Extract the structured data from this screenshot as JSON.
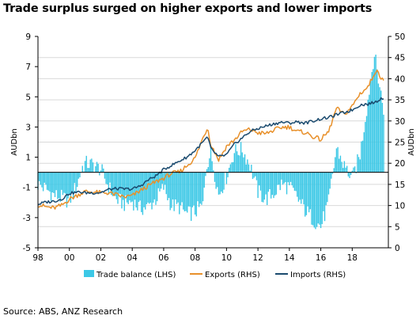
{
  "title": "Trade surplus surged on higher exports and lower imports",
  "source": "Source: ABS, ANZ Research",
  "colors": {
    "trade_balance": "#3cc8e6",
    "exports": "#e8902a",
    "imports": "#1a4a6e",
    "axis": "#000000",
    "grid": "#d9d9d9"
  },
  "chart_data": {
    "type": "bar+line",
    "title": "Trade surplus surged on higher exports and lower imports",
    "x_axis": {
      "type": "year",
      "range": [
        1998,
        2020.3
      ],
      "tick_labels": [
        "98",
        "00",
        "02",
        "04",
        "06",
        "08",
        "10",
        "12",
        "14",
        "16",
        "18"
      ],
      "tick_values": [
        1998,
        2000,
        2002,
        2004,
        2006,
        2008,
        2010,
        2012,
        2014,
        2016,
        2018
      ]
    },
    "y_left": {
      "label": "AUDbn",
      "range": [
        -5,
        9
      ],
      "ticks": [
        -5,
        -3,
        -1,
        1,
        3,
        5,
        7,
        9
      ],
      "tick_labels": [
        "-5",
        "-3",
        "-1",
        "1",
        "3",
        "5",
        "7",
        "9"
      ]
    },
    "y_right": {
      "label": "AUDbn",
      "range": [
        0,
        50
      ],
      "ticks": [
        0,
        5,
        10,
        15,
        20,
        25,
        30,
        35,
        40,
        45,
        50
      ],
      "tick_labels": [
        "0",
        "5",
        "10",
        "15",
        "20",
        "25",
        "30",
        "35",
        "40",
        "45",
        "50"
      ]
    },
    "grid": "horizontal",
    "legend": {
      "placement": "bottom",
      "entries": [
        "Trade balance (LHS)",
        "Exports (RHS)",
        "Imports (RHS)"
      ]
    },
    "series": [
      {
        "name": "Trade balance (LHS)",
        "type": "bar",
        "axis": "left",
        "frequency": "monthly",
        "anchors": [
          [
            1998.0,
            -0.8
          ],
          [
            1998.5,
            -1.1
          ],
          [
            1999.0,
            -1.5
          ],
          [
            1999.5,
            -1.7
          ],
          [
            2000.0,
            -1.9
          ],
          [
            2000.5,
            -0.8
          ],
          [
            2000.8,
            0.3
          ],
          [
            2001.0,
            0.6
          ],
          [
            2001.5,
            0.5
          ],
          [
            2002.0,
            0.2
          ],
          [
            2002.5,
            -1.0
          ],
          [
            2003.0,
            -1.8
          ],
          [
            2003.5,
            -2.1
          ],
          [
            2004.0,
            -1.9
          ],
          [
            2004.5,
            -2.4
          ],
          [
            2005.0,
            -2.3
          ],
          [
            2005.5,
            -1.8
          ],
          [
            2006.0,
            -1.0
          ],
          [
            2006.5,
            -2.2
          ],
          [
            2007.0,
            -2.3
          ],
          [
            2007.5,
            -2.8
          ],
          [
            2008.0,
            -2.6
          ],
          [
            2008.5,
            -2.2
          ],
          [
            2008.7,
            0.4
          ],
          [
            2009.0,
            1.3
          ],
          [
            2009.5,
            -1.5
          ],
          [
            2010.0,
            -0.3
          ],
          [
            2010.5,
            1.4
          ],
          [
            2011.0,
            1.5
          ],
          [
            2011.5,
            0.5
          ],
          [
            2012.0,
            -1.3
          ],
          [
            2012.5,
            -1.8
          ],
          [
            2013.0,
            -1.4
          ],
          [
            2013.5,
            -0.8
          ],
          [
            2014.0,
            -1.0
          ],
          [
            2014.5,
            -1.7
          ],
          [
            2015.0,
            -2.5
          ],
          [
            2015.5,
            -3.1
          ],
          [
            2016.0,
            -3.6
          ],
          [
            2016.5,
            -2.0
          ],
          [
            2017.0,
            1.6
          ],
          [
            2017.5,
            0.4
          ],
          [
            2018.0,
            -0.4
          ],
          [
            2018.5,
            1.2
          ],
          [
            2019.0,
            4.8
          ],
          [
            2019.4,
            7.9
          ],
          [
            2019.7,
            6.0
          ],
          [
            2020.0,
            4.2
          ]
        ]
      },
      {
        "name": "Exports (RHS)",
        "type": "line",
        "axis": "right",
        "frequency": "monthly",
        "anchors": [
          [
            1998.0,
            10.2
          ],
          [
            1998.5,
            9.7
          ],
          [
            1999.0,
            9.4
          ],
          [
            1999.5,
            10.0
          ],
          [
            2000.0,
            11.5
          ],
          [
            2000.7,
            12.8
          ],
          [
            2001.0,
            13.3
          ],
          [
            2001.5,
            13.2
          ],
          [
            2002.0,
            13.0
          ],
          [
            2002.5,
            13.0
          ],
          [
            2003.0,
            12.5
          ],
          [
            2003.5,
            12.0
          ],
          [
            2004.0,
            12.3
          ],
          [
            2004.5,
            13.5
          ],
          [
            2005.0,
            14.6
          ],
          [
            2005.5,
            15.6
          ],
          [
            2006.0,
            16.5
          ],
          [
            2006.5,
            17.6
          ],
          [
            2007.0,
            17.9
          ],
          [
            2007.5,
            19.5
          ],
          [
            2008.0,
            21.2
          ],
          [
            2008.5,
            26.0
          ],
          [
            2008.8,
            28.5
          ],
          [
            2009.0,
            24.5
          ],
          [
            2009.5,
            20.8
          ],
          [
            2010.0,
            24.0
          ],
          [
            2010.5,
            25.5
          ],
          [
            2011.0,
            27.5
          ],
          [
            2011.5,
            28.0
          ],
          [
            2012.0,
            27.2
          ],
          [
            2012.5,
            27.0
          ],
          [
            2013.0,
            27.8
          ],
          [
            2013.5,
            28.5
          ],
          [
            2014.0,
            28.6
          ],
          [
            2014.5,
            27.5
          ],
          [
            2015.0,
            27.3
          ],
          [
            2015.5,
            26.3
          ],
          [
            2016.0,
            25.6
          ],
          [
            2016.5,
            27.5
          ],
          [
            2017.0,
            33.0
          ],
          [
            2017.5,
            31.5
          ],
          [
            2018.0,
            33.5
          ],
          [
            2018.5,
            36.5
          ],
          [
            2019.0,
            38.0
          ],
          [
            2019.5,
            42.0
          ],
          [
            2019.8,
            40.5
          ],
          [
            2020.0,
            40.0
          ]
        ]
      },
      {
        "name": "Imports (RHS)",
        "type": "line",
        "axis": "right",
        "frequency": "monthly",
        "anchors": [
          [
            1998.0,
            10.3
          ],
          [
            1998.5,
            10.8
          ],
          [
            1999.0,
            11.0
          ],
          [
            1999.5,
            11.5
          ],
          [
            2000.0,
            12.9
          ],
          [
            2000.7,
            13.2
          ],
          [
            2001.0,
            13.0
          ],
          [
            2001.5,
            13.0
          ],
          [
            2002.0,
            13.1
          ],
          [
            2002.5,
            13.8
          ],
          [
            2003.0,
            14.0
          ],
          [
            2003.5,
            13.9
          ],
          [
            2004.0,
            13.9
          ],
          [
            2004.5,
            14.6
          ],
          [
            2005.0,
            16.0
          ],
          [
            2005.5,
            17.0
          ],
          [
            2006.0,
            18.5
          ],
          [
            2006.5,
            19.5
          ],
          [
            2007.0,
            20.5
          ],
          [
            2007.5,
            21.5
          ],
          [
            2008.0,
            23.0
          ],
          [
            2008.5,
            25.0
          ],
          [
            2008.8,
            26.2
          ],
          [
            2009.0,
            23.5
          ],
          [
            2009.5,
            21.5
          ],
          [
            2010.0,
            22.0
          ],
          [
            2010.5,
            24.5
          ],
          [
            2011.0,
            26.0
          ],
          [
            2011.5,
            27.5
          ],
          [
            2012.0,
            28.2
          ],
          [
            2012.5,
            28.8
          ],
          [
            2013.0,
            29.3
          ],
          [
            2013.5,
            29.7
          ],
          [
            2014.0,
            29.5
          ],
          [
            2014.5,
            29.8
          ],
          [
            2015.0,
            29.5
          ],
          [
            2015.5,
            30.0
          ],
          [
            2016.0,
            30.5
          ],
          [
            2016.5,
            30.8
          ],
          [
            2017.0,
            31.5
          ],
          [
            2017.5,
            32.0
          ],
          [
            2018.0,
            32.6
          ],
          [
            2018.5,
            33.8
          ],
          [
            2019.0,
            34.0
          ],
          [
            2019.5,
            34.5
          ],
          [
            2019.8,
            35.3
          ],
          [
            2020.0,
            35.5
          ]
        ]
      }
    ]
  }
}
